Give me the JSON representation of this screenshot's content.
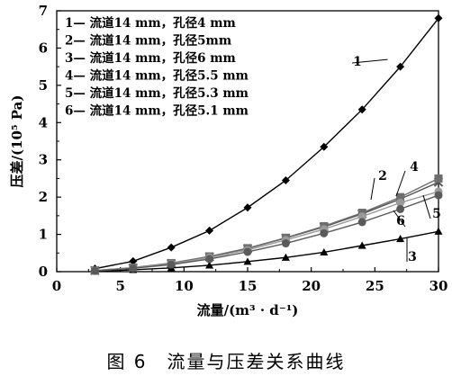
{
  "caption": "图 6　流量与压差关系曲线",
  "chart_data": {
    "type": "line",
    "xlabel": "流量/(m³ · d⁻¹)",
    "ylabel": "压差/(10⁵ Pa)",
    "xlim": [
      0,
      30
    ],
    "ylim": [
      0,
      7
    ],
    "xticks": [
      0,
      5,
      10,
      15,
      20,
      25,
      30
    ],
    "yticks": [
      0,
      1,
      2,
      3,
      4,
      5,
      6,
      7
    ],
    "grid": false,
    "legend_position": "top-left",
    "x": [
      3,
      6,
      9,
      12,
      15,
      18,
      21,
      24,
      27,
      30
    ],
    "series": [
      {
        "name": "1— 流道14 mm，孔径4 mm",
        "label": "1",
        "marker": "diamond",
        "color": "#000000",
        "values": [
          0.08,
          0.28,
          0.65,
          1.1,
          1.72,
          2.45,
          3.35,
          4.35,
          5.5,
          6.8
        ]
      },
      {
        "name": "2— 流道14 mm，孔径5mm",
        "label": "2",
        "marker": "x",
        "color": "#555555",
        "values": [
          0.03,
          0.1,
          0.22,
          0.4,
          0.62,
          0.9,
          1.2,
          1.55,
          1.95,
          2.4
        ]
      },
      {
        "name": "3— 流道14 mm，孔径6 mm",
        "label": "3",
        "marker": "triangle",
        "color": "#000000",
        "values": [
          0.01,
          0.05,
          0.1,
          0.17,
          0.27,
          0.38,
          0.52,
          0.7,
          0.88,
          1.08
        ]
      },
      {
        "name": "4— 流道14 mm，孔径5.5 mm",
        "label": "4",
        "marker": "square",
        "color": "#6e6e6e",
        "values": [
          0.03,
          0.11,
          0.23,
          0.41,
          0.63,
          0.91,
          1.22,
          1.58,
          2.0,
          2.5
        ]
      },
      {
        "name": "5— 流道14 mm，孔径5.3 mm",
        "label": "5",
        "marker": "circle",
        "color": "#9a9a9a",
        "values": [
          0.03,
          0.1,
          0.21,
          0.38,
          0.58,
          0.85,
          1.14,
          1.48,
          1.85,
          2.15
        ]
      },
      {
        "name": "6— 流道14 mm，孔径5.1 mm",
        "label": "6",
        "marker": "circle",
        "color": "#5a5a5a",
        "values": [
          0.02,
          0.09,
          0.19,
          0.34,
          0.53,
          0.76,
          1.03,
          1.33,
          1.68,
          2.05
        ]
      }
    ]
  }
}
